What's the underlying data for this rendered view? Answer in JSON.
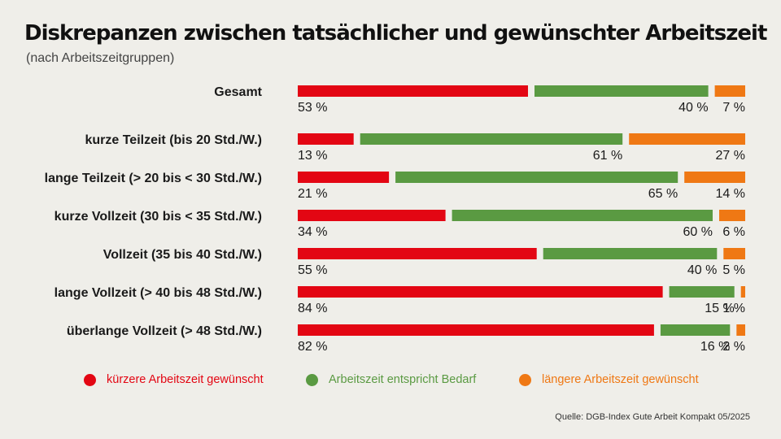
{
  "title": "Diskrepanzen zwischen tatsächlicher und gewünschter Arbeitszeit",
  "subtitle": "(nach Arbeitszeitgruppen)",
  "source": "Quelle: DGB-Index Gute Arbeit Kompakt 05/2025",
  "colors": {
    "kuerzer": "#e30613",
    "passt": "#5a9a42",
    "laenger": "#ef7814"
  },
  "chart_data": {
    "type": "bar",
    "orientation": "horizontal",
    "stacked": true,
    "title": "Diskrepanzen zwischen tatsächlicher und gewünschter Arbeitszeit",
    "subtitle": "(nach Arbeitszeitgruppen)",
    "unit": "%",
    "categories": [
      "Gesamt",
      "kurze Teilzeit (bis 20 Std./W.)",
      "lange Teilzeit (> 20 bis < 30 Std./W.)",
      "kurze Vollzeit (30 bis < 35 Std./W.)",
      "Vollzeit (35 bis 40 Std./W.)",
      "lange Vollzeit (> 40 bis 48 Std./W.)",
      "überlange Vollzeit (> 48 Std./W.)"
    ],
    "series": [
      {
        "name": "kürzere Arbeitszeit gewünscht",
        "color": "#e30613",
        "values": [
          53,
          13,
          21,
          34,
          55,
          84,
          82
        ],
        "labels": [
          "53 %",
          "13 %",
          "21 %",
          "34 %",
          "55 %",
          "84 %",
          "82 %"
        ]
      },
      {
        "name": "Arbeitszeit entspricht Bedarf",
        "color": "#5a9a42",
        "values": [
          40,
          61,
          65,
          60,
          40,
          15,
          16
        ],
        "labels": [
          "40 %",
          "61 %",
          "65 %",
          "60 %",
          "40 %",
          "15 %",
          "16 %"
        ]
      },
      {
        "name": "längere Arbeitszeit gewünscht",
        "color": "#ef7814",
        "values": [
          7,
          27,
          14,
          6,
          5,
          1,
          2
        ],
        "labels": [
          "7 %",
          "27 %",
          "14 %",
          "6 %",
          "5 %",
          "1 %",
          "2 %"
        ]
      }
    ],
    "legend": [
      {
        "label": "kürzere Arbeitszeit gewünscht",
        "color": "#e30613"
      },
      {
        "label": "Arbeitszeit entspricht Bedarf",
        "color": "#5a9a42"
      },
      {
        "label": "längere Arbeitszeit gewünscht",
        "color": "#ef7814"
      }
    ],
    "legend_position": "bottom"
  }
}
